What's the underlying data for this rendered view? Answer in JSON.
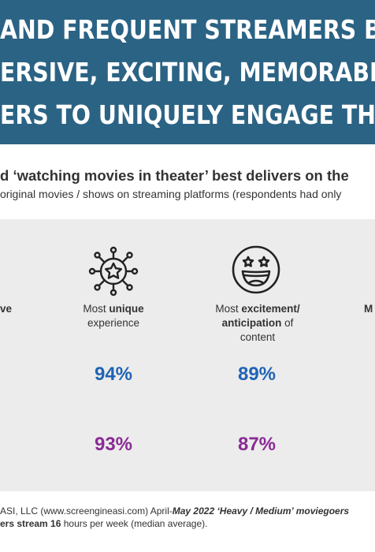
{
  "header": {
    "line1": "AND FREQUENT STREAMERS BOTH AGR",
    "line2": "ERSIVE, EXCITING, MEMORABLE, ATTE",
    "line3": "ERS TO UNIQUELY ENGAGE THESE CON",
    "bg": "#2b6384"
  },
  "subtitle": {
    "main": "d ‘watching movies in theater’ best delivers on the",
    "sub": "original movies / shows on streaming platforms (respondents had only"
  },
  "columns": [
    {
      "label_bold": "ve",
      "label_rest": ""
    },
    {
      "label_pre": "Most ",
      "label_bold": "unique",
      "label_line2": "experience",
      "icon": "star-network-icon",
      "pct_blue": "94%",
      "pct_purple": "93%"
    },
    {
      "label_pre": "Most ",
      "label_bold": "excitement/",
      "label_bold2": "anticipation",
      "label_rest2": " of",
      "label_line3": "content",
      "icon": "excited-face-icon",
      "pct_blue": "89%",
      "pct_purple": "87%"
    },
    {
      "label_bold": "M"
    }
  ],
  "colors": {
    "blue": "#2063b4",
    "purple": "#8a2a95",
    "panel": "#ececec"
  },
  "footer": {
    "line1_a": "ASI, LLC (www.screengineasi.com) April-",
    "line1_b": "May 2022 ‘Heavy / Medium’ moviegoers",
    "line2_a": "ers stream 16",
    "line2_b": " hours per week (median average)."
  }
}
